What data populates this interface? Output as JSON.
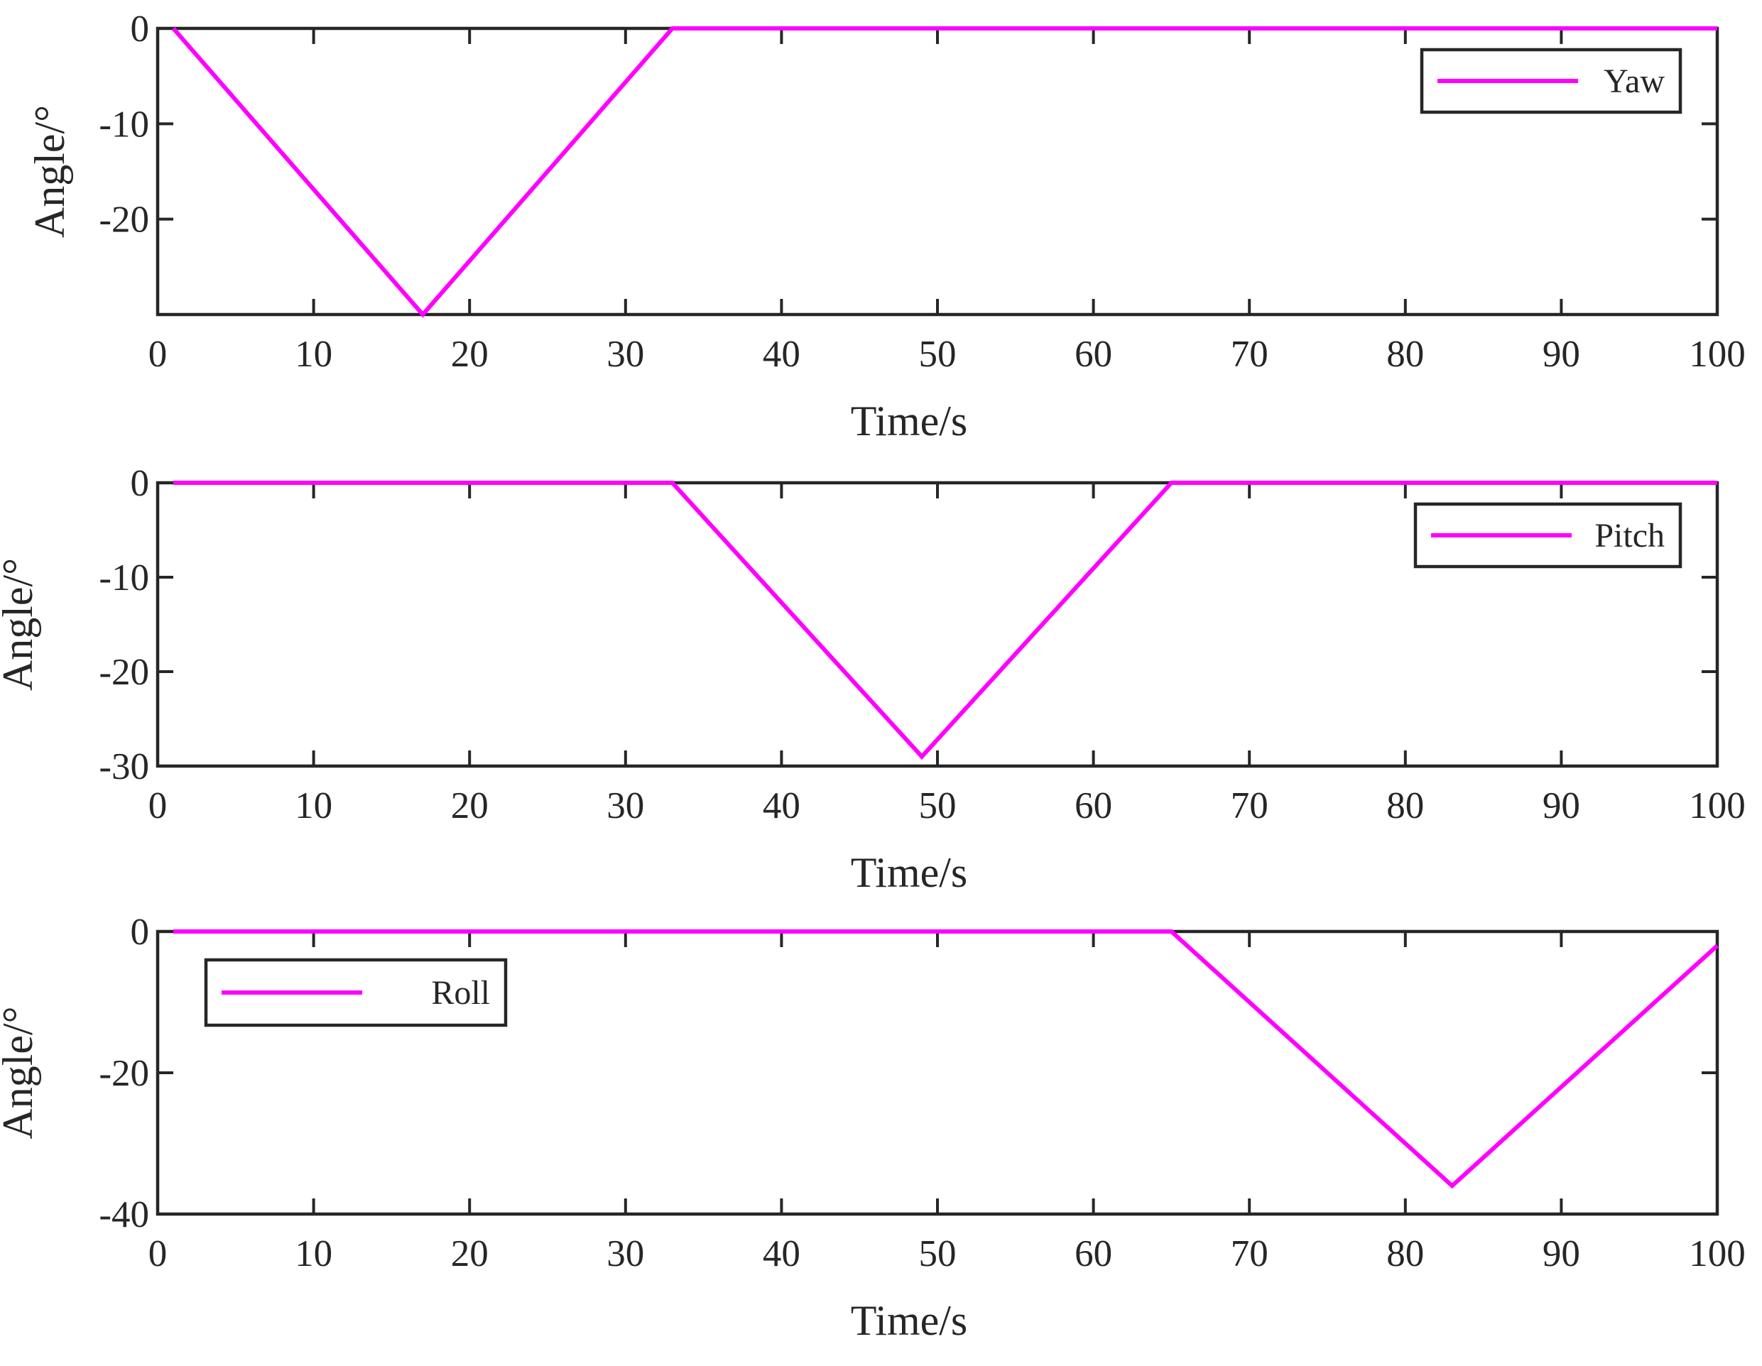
{
  "chart_data": [
    {
      "type": "line",
      "xlabel": "Time/s",
      "ylabel": "Angle/°",
      "xlim": [
        0,
        100
      ],
      "ylim": [
        -30,
        0
      ],
      "xticks": [
        "0",
        "10",
        "20",
        "30",
        "40",
        "50",
        "60",
        "70",
        "80",
        "90",
        "100"
      ],
      "yticks": [
        "0",
        "-10",
        "-20"
      ],
      "grid": false,
      "legend_position": "top-right",
      "series": [
        {
          "name": "Yaw",
          "color": "#ff00ff",
          "x": [
            1,
            17,
            33,
            100
          ],
          "y": [
            0,
            -30,
            0,
            0
          ]
        }
      ]
    },
    {
      "type": "line",
      "xlabel": "Time/s",
      "ylabel": "Angle/°",
      "xlim": [
        0,
        100
      ],
      "ylim": [
        -30,
        0
      ],
      "xticks": [
        "0",
        "10",
        "20",
        "30",
        "40",
        "50",
        "60",
        "70",
        "80",
        "90",
        "100"
      ],
      "yticks": [
        "0",
        "-10",
        "-20",
        "-30"
      ],
      "grid": false,
      "legend_position": "top-right",
      "series": [
        {
          "name": "Pitch",
          "color": "#ff00ff",
          "x": [
            1,
            33,
            49,
            65,
            100
          ],
          "y": [
            0,
            0,
            -29,
            0,
            0
          ]
        }
      ]
    },
    {
      "type": "line",
      "xlabel": "Time/s",
      "ylabel": "Angle/°",
      "xlim": [
        0,
        100
      ],
      "ylim": [
        -40,
        0
      ],
      "xticks": [
        "0",
        "10",
        "20",
        "30",
        "40",
        "50",
        "60",
        "70",
        "80",
        "90",
        "100"
      ],
      "yticks": [
        "0",
        "-20",
        "-40"
      ],
      "grid": false,
      "legend_position": "top-left",
      "series": [
        {
          "name": "Roll",
          "color": "#ff00ff",
          "x": [
            1,
            65,
            83,
            100
          ],
          "y": [
            0,
            0,
            -36,
            -2
          ]
        }
      ]
    }
  ]
}
